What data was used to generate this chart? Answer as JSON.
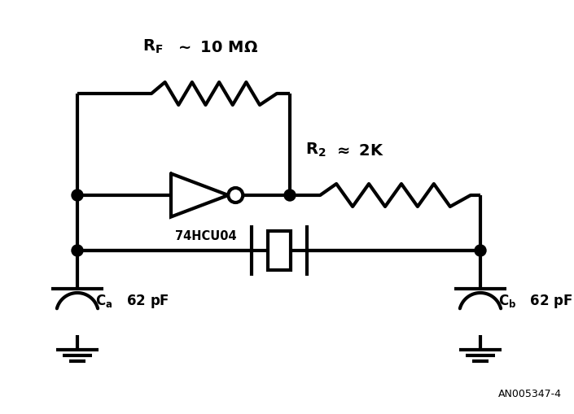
{
  "bg_color": "#ffffff",
  "line_color": "#000000",
  "lw": 3.0,
  "fig_width": 7.05,
  "fig_height": 5.09,
  "label_ref": "AN005347-4"
}
